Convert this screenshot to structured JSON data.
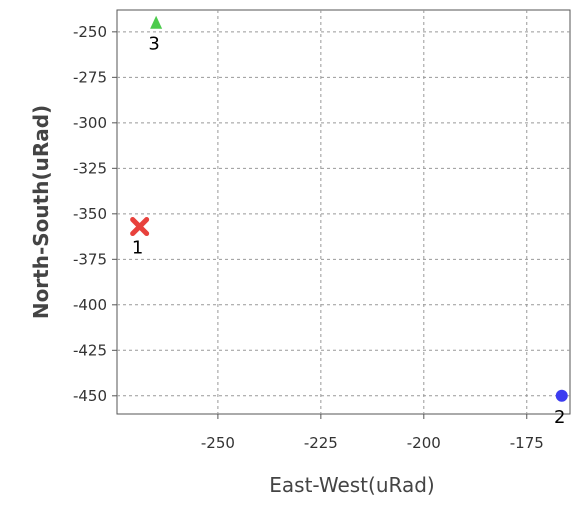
{
  "chart_data": {
    "type": "scatter",
    "title": "",
    "xlabel": "East-West(uRad)",
    "ylabel": "North-South(uRad)",
    "xlim": [
      -274.5,
      -164.5
    ],
    "ylim": [
      -460,
      -238
    ],
    "xticks": [
      -250,
      -225,
      -200,
      -175
    ],
    "yticks": [
      -250,
      -275,
      -300,
      -325,
      -350,
      -375,
      -400,
      -425,
      -450
    ],
    "grid": true,
    "legend": "none",
    "points": [
      {
        "label": "1",
        "x": -269,
        "y": -357,
        "marker": "x",
        "color": "#e8413c"
      },
      {
        "label": "2",
        "x": -166.5,
        "y": -450,
        "marker": "circle",
        "color": "#3c3cf0"
      },
      {
        "label": "3",
        "x": -265,
        "y": -245,
        "marker": "triangle",
        "color": "#4ccb4c"
      }
    ]
  }
}
